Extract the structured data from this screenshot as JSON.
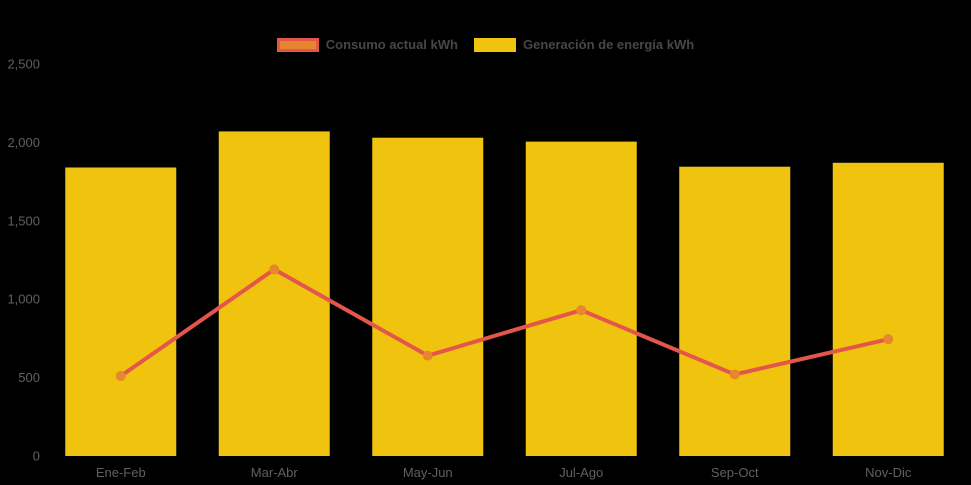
{
  "page": {
    "background": "#000000"
  },
  "legend": {
    "text_color": "#474747",
    "items": [
      {
        "label": "Consumo actual kWh",
        "swatch_fill": "#E6862E",
        "swatch_border": "#E4564B"
      },
      {
        "label": "Generación de energía kWh",
        "swatch_fill": "#F0C40E",
        "swatch_border": "#F0C40E"
      }
    ]
  },
  "chart_data": {
    "type": "bar",
    "title": "",
    "xlabel": "",
    "ylabel": "",
    "categories": [
      "Ene-Feb",
      "Mar-Abr",
      "May-Jun",
      "Jul-Ago",
      "Sep-Oct",
      "Nov-Dic"
    ],
    "series": [
      {
        "name": "Generación de energía kWh",
        "type": "bar",
        "color": "#F0C40E",
        "values": [
          1840,
          2070,
          2030,
          2005,
          1845,
          1870
        ]
      },
      {
        "name": "Consumo actual kWh",
        "type": "line",
        "color": "#E4564B",
        "point_color": "#E6862E",
        "values": [
          510,
          1190,
          640,
          930,
          520,
          745
        ]
      }
    ],
    "ylim": [
      0,
      2500
    ],
    "yticks": [
      {
        "value": 0,
        "label": "0"
      },
      {
        "value": 500,
        "label": "500"
      },
      {
        "value": 1000,
        "label": "1,000"
      },
      {
        "value": 1500,
        "label": "1,500"
      },
      {
        "value": 2000,
        "label": "2,000"
      },
      {
        "value": 2500,
        "label": "2,500"
      }
    ],
    "axis_label_color": "#606060",
    "grid": false,
    "legend_position": "top"
  }
}
